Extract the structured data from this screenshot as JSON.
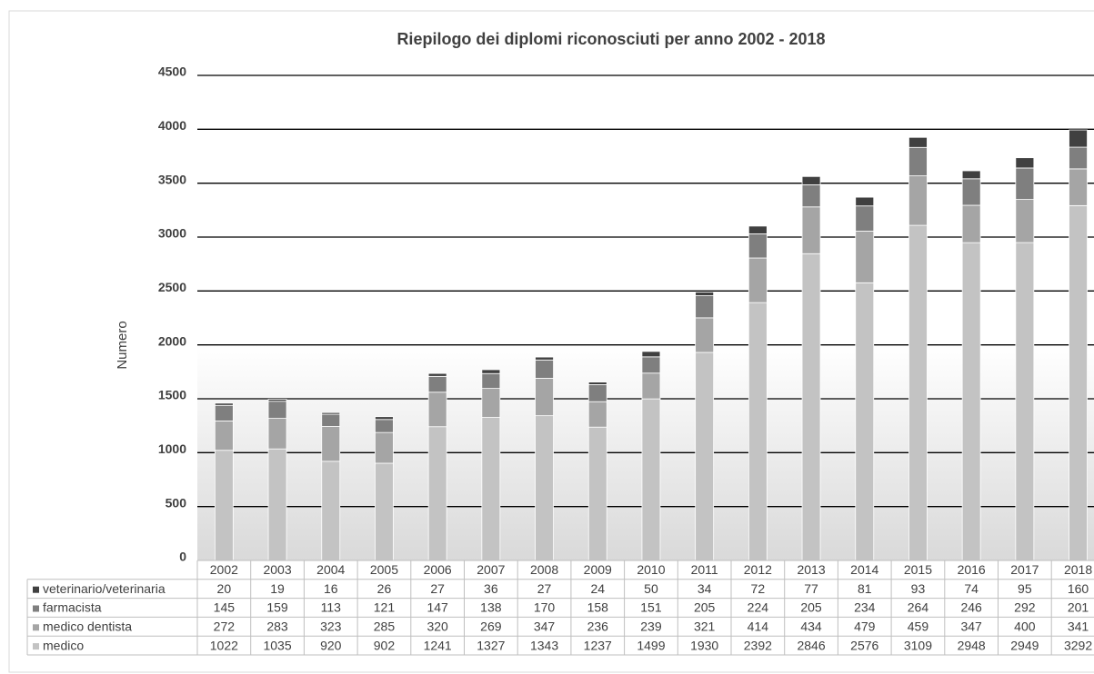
{
  "chart_data": {
    "type": "stacked_bar",
    "title": "Riepilogo dei diplomi riconosciuti per anno 2002 - 2018",
    "y_label": "Numero",
    "categories": [
      "2002",
      "2003",
      "2004",
      "2005",
      "2006",
      "2007",
      "2008",
      "2009",
      "2010",
      "2011",
      "2012",
      "2013",
      "2014",
      "2015",
      "2016",
      "2017",
      "2018"
    ],
    "series": [
      {
        "name": "veterinario/veterinaria",
        "color": "#404040",
        "values": [
          20,
          19,
          16,
          26,
          27,
          36,
          27,
          24,
          50,
          34,
          72,
          77,
          81,
          93,
          74,
          95,
          160
        ]
      },
      {
        "name": "farmacista",
        "color": "#7f7f7f",
        "values": [
          145,
          159,
          113,
          121,
          147,
          138,
          170,
          158,
          151,
          205,
          224,
          205,
          234,
          264,
          246,
          292,
          201
        ]
      },
      {
        "name": "medico dentista",
        "color": "#a5a5a5",
        "values": [
          272,
          283,
          323,
          285,
          320,
          269,
          347,
          236,
          239,
          321,
          414,
          434,
          479,
          459,
          347,
          400,
          341
        ]
      },
      {
        "name": "medico",
        "color": "#c3c3c3",
        "values": [
          1022,
          1035,
          920,
          902,
          1241,
          1327,
          1343,
          1237,
          1499,
          1930,
          2392,
          2846,
          2576,
          3109,
          2948,
          2949,
          3292
        ]
      }
    ],
    "ylim": [
      0,
      4500
    ],
    "yticks": [
      0,
      500,
      1000,
      1500,
      2000,
      2500,
      3000,
      3500,
      4000,
      4500
    ],
    "grid": true
  }
}
